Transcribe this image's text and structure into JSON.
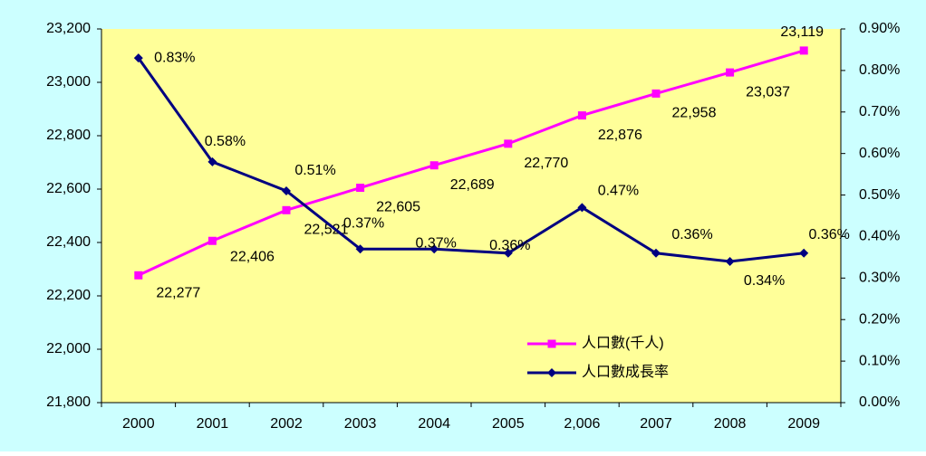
{
  "chart_data": {
    "type": "line",
    "categories": [
      "2000",
      "2001",
      "2002",
      "2003",
      "2004",
      "2005",
      "2,006",
      "2007",
      "2008",
      "2009"
    ],
    "series": [
      {
        "name": "人口數(千人)",
        "color": "#ff00ff",
        "marker": "square",
        "values": [
          22277,
          22406,
          22521,
          22605,
          22689,
          22770,
          22876,
          22958,
          23037,
          23119
        ],
        "value_labels": [
          "22,277",
          "22,406",
          "22,521",
          "22,605",
          "22,689",
          "22,770",
          "22,876",
          "22,958",
          "23,037",
          "23,119"
        ]
      },
      {
        "name": "人口數成長率",
        "color": "#000080",
        "marker": "diamond",
        "axis": "y2",
        "values": [
          0.83,
          0.58,
          0.51,
          0.37,
          0.37,
          0.36,
          0.47,
          0.36,
          0.34,
          0.36
        ],
        "value_labels": [
          "0.83%",
          "0.58%",
          "0.51%",
          "0.37%",
          "0.37%",
          "0.36%",
          "0.47%",
          "0.36%",
          "0.34%",
          "0.36%"
        ]
      }
    ],
    "ylim": [
      21800,
      23200
    ],
    "yticks": [
      {
        "value": 21800,
        "label": "21,800"
      },
      {
        "value": 22000,
        "label": "22,000"
      },
      {
        "value": 22200,
        "label": "22,200"
      },
      {
        "value": 22400,
        "label": "22,400"
      },
      {
        "value": 22600,
        "label": "22,600"
      },
      {
        "value": 22800,
        "label": "22,800"
      },
      {
        "value": 23000,
        "label": "23,000"
      },
      {
        "value": 23200,
        "label": "23,200"
      }
    ],
    "y2lim": [
      0,
      0.9
    ],
    "y2ticks": [
      {
        "value": 0,
        "label": "0.00%"
      },
      {
        "value": 0.1,
        "label": "0.10%"
      },
      {
        "value": 0.2,
        "label": "0.20%"
      },
      {
        "value": 0.3,
        "label": "0.30%"
      },
      {
        "value": 0.4,
        "label": "0.40%"
      },
      {
        "value": 0.5,
        "label": "0.50%"
      },
      {
        "value": 0.6,
        "label": "0.60%"
      },
      {
        "value": 0.7,
        "label": "0.70%"
      },
      {
        "value": 0.8,
        "label": "0.80%"
      },
      {
        "value": 0.9,
        "label": "0.90%"
      }
    ],
    "legend": "lower right",
    "grid": false
  }
}
